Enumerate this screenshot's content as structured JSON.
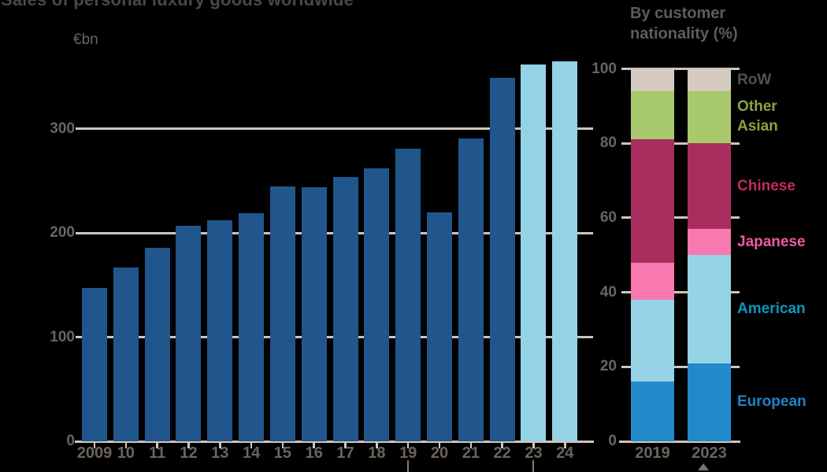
{
  "page_title": "Sales of personal luxury goods worldwide",
  "colors": {
    "background": "#000000",
    "axis": "#CFC5BB",
    "tick_text": "#6B645E",
    "main_title_text": "#4D4742",
    "subtitle_text": "#635C56",
    "footnote_marker": "#837C75",
    "bar_actual": "#20568C",
    "bar_forecast": "#94D3E5"
  },
  "chart_data": [
    {
      "type": "bar",
      "title": "Sales of personal luxury goods worldwide",
      "ylabel": "€bn",
      "categories": [
        "2009",
        "10",
        "11",
        "12",
        "13",
        "14",
        "15",
        "16",
        "17",
        "18",
        "19",
        "20",
        "21",
        "22",
        "23",
        "24"
      ],
      "values": [
        147,
        167,
        186,
        207,
        212,
        219,
        245,
        244,
        254,
        262,
        281,
        220,
        291,
        349,
        362,
        365
      ],
      "bar_color_actual": "#20568C",
      "bar_color_forecast": "#94D3E5",
      "forecast_start_category": "23",
      "yticks": [
        0,
        100,
        200,
        300
      ],
      "ylim": [
        0,
        368
      ],
      "grid": "horizontal",
      "legend_position": "none",
      "footnote_marked_categories": [
        "19",
        "23"
      ]
    },
    {
      "type": "stacked-bar",
      "title": "By customer nationality (%)",
      "categories": [
        "2019",
        "2023"
      ],
      "series": [
        {
          "name": "European",
          "values": [
            16,
            21
          ],
          "color": "#2289CB",
          "label_color": "#2083C7"
        },
        {
          "name": "American",
          "values": [
            22,
            29
          ],
          "color": "#97D3E6",
          "label_color": "#1095BD"
        },
        {
          "name": "Japanese",
          "values": [
            10,
            7
          ],
          "color": "#F878B0",
          "label_color": "#EE5AA0"
        },
        {
          "name": "Chinese",
          "values": [
            33,
            23
          ],
          "color": "#AA2E5D",
          "label_color": "#C22A62"
        },
        {
          "name": "Other Asian",
          "values": [
            13,
            14
          ],
          "color": "#A9C96D",
          "label_color": "#8BA43F"
        },
        {
          "name": "RoW",
          "values": [
            6,
            6
          ],
          "color": "#D5CBC1",
          "label_color": "#575049"
        }
      ],
      "yticks": [
        0,
        20,
        40,
        60,
        80,
        100
      ],
      "ylim": [
        0,
        100
      ],
      "grid": "horizontal",
      "legend_position": "right",
      "footnote_marked_categories": [
        "2023"
      ]
    }
  ]
}
